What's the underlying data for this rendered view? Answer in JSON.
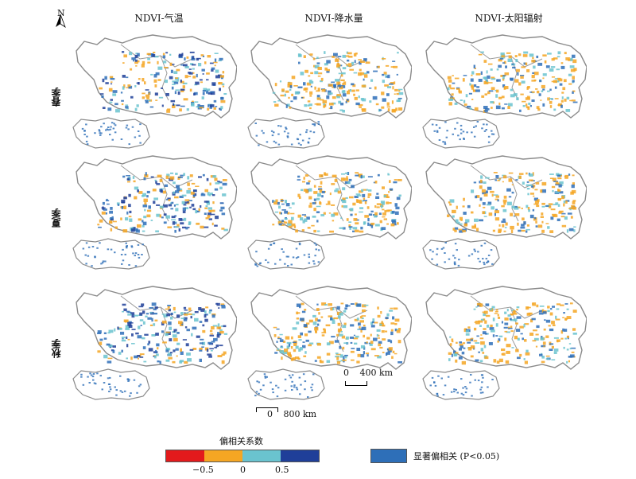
{
  "north_label": "N",
  "columns": [
    {
      "label": "NDVI-气温"
    },
    {
      "label": "NDVI-降水量"
    },
    {
      "label": "NDVI-太阳辐射"
    }
  ],
  "rows": [
    {
      "label": "春季"
    },
    {
      "label": "夏季"
    },
    {
      "label": "秋季"
    }
  ],
  "scalebar_small": {
    "zero": "0",
    "value": "400 km"
  },
  "scalebar_large": {
    "zero": "0",
    "value": "800 km"
  },
  "legend": {
    "title": "偏相关系数",
    "colors": [
      "#e31a1c",
      "#f5a623",
      "#6ac3cf",
      "#1f3f99"
    ],
    "ticks": [
      "−0.5",
      "0",
      "0.5"
    ]
  },
  "significance": {
    "label": "显著偏相关 (P<0.05)",
    "color": "#2e6fb8"
  }
}
